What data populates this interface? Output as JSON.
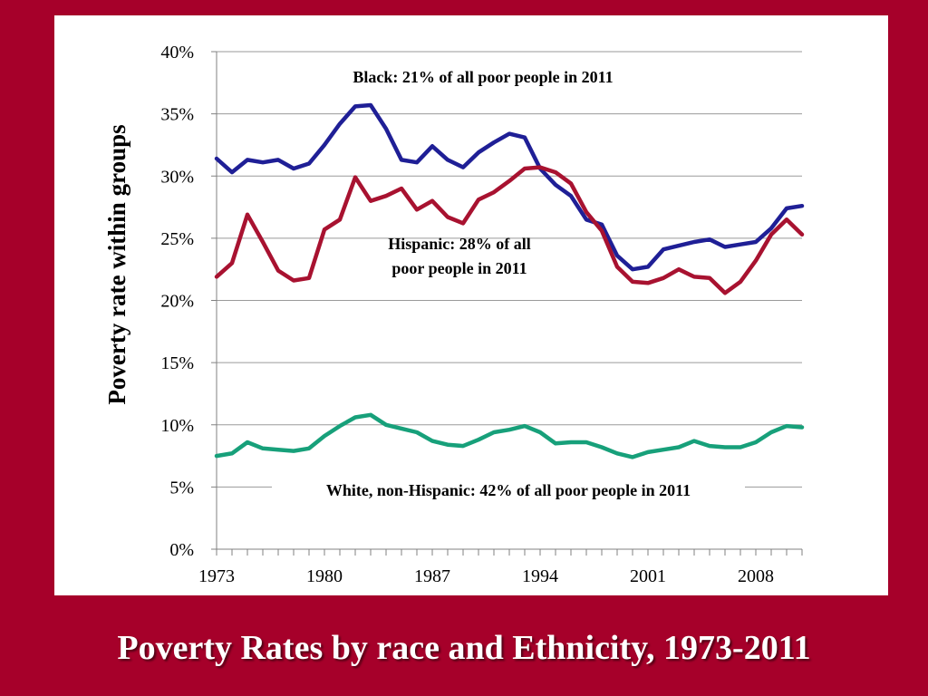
{
  "slide_title": "Poverty Rates by race and Ethnicity, 1973-2011",
  "chart_data": {
    "type": "line",
    "title": "",
    "xlabel": "",
    "ylabel": "Poverty rate within groups",
    "xlim": [
      1973,
      2011
    ],
    "ylim": [
      0,
      40
    ],
    "y_ticks": [
      0,
      5,
      10,
      15,
      20,
      25,
      30,
      35,
      40
    ],
    "y_tick_labels": [
      "0%",
      "5%",
      "10%",
      "15%",
      "20%",
      "25%",
      "30%",
      "35%",
      "40%"
    ],
    "x_tick_values": [
      1973,
      1980,
      1987,
      1994,
      2001,
      2008
    ],
    "x_tick_labels": [
      "1973",
      "1980",
      "1987",
      "1994",
      "2001",
      "2008"
    ],
    "grid": "horizontal",
    "x": [
      1973,
      1974,
      1975,
      1976,
      1977,
      1978,
      1979,
      1980,
      1981,
      1982,
      1983,
      1984,
      1985,
      1986,
      1987,
      1988,
      1989,
      1990,
      1991,
      1992,
      1993,
      1994,
      1995,
      1996,
      1997,
      1998,
      1999,
      2000,
      2001,
      2002,
      2003,
      2004,
      2005,
      2006,
      2007,
      2008,
      2009,
      2010,
      2011
    ],
    "series": [
      {
        "name": "Black",
        "color": "#1f1f96",
        "values": [
          31.4,
          30.3,
          31.3,
          31.1,
          31.3,
          30.6,
          31.0,
          32.5,
          34.2,
          35.6,
          35.7,
          33.8,
          31.3,
          31.1,
          32.4,
          31.3,
          30.7,
          31.9,
          32.7,
          33.4,
          33.1,
          30.6,
          29.3,
          28.4,
          26.5,
          26.1,
          23.6,
          22.5,
          22.7,
          24.1,
          24.4,
          24.7,
          24.9,
          24.3,
          24.5,
          24.7,
          25.8,
          27.4,
          27.6
        ]
      },
      {
        "name": "Hispanic",
        "color": "#a81230",
        "values": [
          21.9,
          23.0,
          26.9,
          24.7,
          22.4,
          21.6,
          21.8,
          25.7,
          26.5,
          29.9,
          28.0,
          28.4,
          29.0,
          27.3,
          28.0,
          26.7,
          26.2,
          28.1,
          28.7,
          29.6,
          30.6,
          30.7,
          30.3,
          29.4,
          27.1,
          25.6,
          22.7,
          21.5,
          21.4,
          21.8,
          22.5,
          21.9,
          21.8,
          20.6,
          21.5,
          23.2,
          25.3,
          26.5,
          25.3
        ]
      },
      {
        "name": "White, non-Hispanic",
        "color": "#17a07a",
        "values": [
          7.5,
          7.7,
          8.6,
          8.1,
          8.0,
          7.9,
          8.1,
          9.1,
          9.9,
          10.6,
          10.8,
          10.0,
          9.7,
          9.4,
          8.7,
          8.4,
          8.3,
          8.8,
          9.4,
          9.6,
          9.9,
          9.4,
          8.5,
          8.6,
          8.6,
          8.2,
          7.7,
          7.4,
          7.8,
          8.0,
          8.2,
          8.7,
          8.3,
          8.2,
          8.2,
          8.6,
          9.4,
          9.9,
          9.8
        ]
      }
    ],
    "annotations": [
      {
        "series": "Black",
        "text": "Black: 21% of all poor people in 2011"
      },
      {
        "series": "Hispanic",
        "lines": [
          "Hispanic: 28% of all",
          "poor people in 2011"
        ]
      },
      {
        "series": "White, non-Hispanic",
        "text": "White, non-Hispanic: 42% of all poor people in 2011"
      }
    ]
  }
}
